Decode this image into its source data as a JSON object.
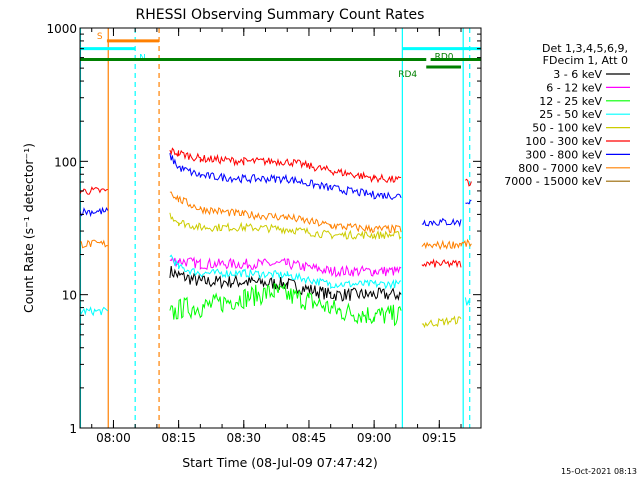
{
  "chart_data": {
    "type": "line",
    "title": "RHESSI Observing Summary Count Rates",
    "xlabel": "Start Time (08-Jul-09 07:47:42)",
    "ylabel": "Count Rate (s⁻¹ detector⁻¹)",
    "y_scale": "log",
    "ylim": [
      1,
      1000
    ],
    "xlim_minutes": [
      -7.7,
      84.6
    ],
    "x_ticks": [
      {
        "label": "08:00",
        "minute": 0
      },
      {
        "label": "08:15",
        "minute": 15
      },
      {
        "label": "08:30",
        "minute": 30
      },
      {
        "label": "08:45",
        "minute": 45
      },
      {
        "label": "09:00",
        "minute": 60
      },
      {
        "label": "09:15",
        "minute": 75
      }
    ],
    "y_ticks": [
      {
        "label": "1",
        "value": 1
      },
      {
        "label": "10",
        "value": 10
      },
      {
        "label": "100",
        "value": 100
      },
      {
        "label": "1000",
        "value": 1000
      }
    ],
    "legend": {
      "header": [
        "Det 1,3,4,5,6,9,",
        "FDecim 1, Att 0"
      ],
      "placement": "right",
      "entries": [
        {
          "label": "3 - 6 keV",
          "color": "#000000"
        },
        {
          "label": "6 - 12 keV",
          "color": "#ff00ff"
        },
        {
          "label": "12 - 25 keV",
          "color": "#00ff00"
        },
        {
          "label": "25 - 50 keV",
          "color": "#00ffff"
        },
        {
          "label": "50 - 100 keV",
          "color": "#cccc00"
        },
        {
          "label": "100 - 300 keV",
          "color": "#ff0000"
        },
        {
          "label": "300 - 800 keV",
          "color": "#0000ff"
        },
        {
          "label": "800 - 7000 keV",
          "color": "#ff8000"
        },
        {
          "label": "7000 - 15000 keV",
          "color": "#996600"
        }
      ]
    },
    "series": [
      {
        "name": "3 - 6 keV",
        "color": "#000000",
        "noise": 0.05,
        "points": [
          [
            -7.7,
            null
          ],
          [
            13,
            15
          ],
          [
            15,
            14
          ],
          [
            20,
            12.5
          ],
          [
            30,
            12.5
          ],
          [
            40,
            12
          ],
          [
            50,
            10
          ],
          [
            58,
            10
          ],
          [
            66.2,
            10
          ],
          [
            67,
            null
          ]
        ]
      },
      {
        "name": "6 - 12 keV",
        "color": "#ff00ff",
        "noise": 0.04,
        "points": [
          [
            -7.7,
            null
          ],
          [
            13,
            18
          ],
          [
            15,
            18
          ],
          [
            20,
            17
          ],
          [
            30,
            17
          ],
          [
            40,
            17
          ],
          [
            50,
            15
          ],
          [
            60,
            15
          ],
          [
            66.2,
            15
          ],
          [
            67,
            null
          ]
        ]
      },
      {
        "name": "12 - 25 keV",
        "color": "#00ff00",
        "noise": 0.08,
        "points": [
          [
            -7.7,
            null
          ],
          [
            13,
            7
          ],
          [
            16,
            8
          ],
          [
            20,
            8
          ],
          [
            30,
            9.5
          ],
          [
            37,
            10.5
          ],
          [
            45,
            9
          ],
          [
            52,
            7.5
          ],
          [
            60,
            7
          ],
          [
            66.2,
            7
          ],
          [
            67,
            null
          ]
        ]
      },
      {
        "name": "25 - 50 keV",
        "color": "#00ffff",
        "noise": 0.03,
        "points": [
          [
            -7.7,
            7.5
          ],
          [
            -1.3,
            7.5
          ],
          [
            -1.1,
            null
          ],
          [
            13,
            20
          ],
          [
            15,
            16
          ],
          [
            20,
            14.5
          ],
          [
            30,
            14.5
          ],
          [
            40,
            14
          ],
          [
            50,
            12
          ],
          [
            60,
            12
          ],
          [
            66.2,
            12
          ],
          [
            67,
            null
          ],
          [
            80.5,
            null
          ],
          [
            81,
            9
          ],
          [
            82,
            8.5
          ],
          [
            82.4,
            null
          ]
        ]
      },
      {
        "name": "50 - 100 keV",
        "color": "#cccc00",
        "noise": 0.03,
        "points": [
          [
            -7.7,
            null
          ],
          [
            13,
            40
          ],
          [
            15,
            35
          ],
          [
            20,
            32
          ],
          [
            30,
            32
          ],
          [
            40,
            31
          ],
          [
            50,
            28
          ],
          [
            60,
            28
          ],
          [
            66.2,
            28
          ],
          [
            67,
            null
          ],
          [
            71,
            6
          ],
          [
            80,
            6.5
          ],
          [
            81,
            null
          ]
        ]
      },
      {
        "name": "100 - 300 keV",
        "color": "#ff0000",
        "noise": 0.03,
        "points": [
          [
            -7.7,
            60
          ],
          [
            -1.3,
            60
          ],
          [
            -1.1,
            null
          ],
          [
            13,
            120
          ],
          [
            15,
            115
          ],
          [
            20,
            105
          ],
          [
            30,
            100
          ],
          [
            40,
            100
          ],
          [
            50,
            85
          ],
          [
            60,
            75
          ],
          [
            66.2,
            72
          ],
          [
            67,
            null
          ],
          [
            71,
            17
          ],
          [
            80,
            17
          ],
          [
            80.5,
            null
          ],
          [
            81,
            70
          ],
          [
            82.4,
            70
          ]
        ]
      },
      {
        "name": "300 - 800 keV",
        "color": "#0000ff",
        "noise": 0.03,
        "points": [
          [
            -7.7,
            42
          ],
          [
            -1.3,
            42
          ],
          [
            -1.1,
            null
          ],
          [
            13,
            110
          ],
          [
            15,
            90
          ],
          [
            20,
            78
          ],
          [
            30,
            74
          ],
          [
            40,
            74
          ],
          [
            50,
            63
          ],
          [
            60,
            56
          ],
          [
            66.2,
            55
          ],
          [
            67,
            null
          ],
          [
            71,
            35
          ],
          [
            80,
            35
          ],
          [
            80.5,
            null
          ],
          [
            81,
            50
          ],
          [
            82.4,
            50
          ]
        ]
      },
      {
        "name": "800 - 7000 keV",
        "color": "#ff8000",
        "noise": 0.03,
        "points": [
          [
            -7.7,
            24
          ],
          [
            -1.3,
            24
          ],
          [
            -1.1,
            null
          ],
          [
            13,
            60
          ],
          [
            15,
            52
          ],
          [
            20,
            44
          ],
          [
            30,
            40
          ],
          [
            40,
            38
          ],
          [
            50,
            33
          ],
          [
            60,
            31
          ],
          [
            66.2,
            31
          ],
          [
            67,
            null
          ],
          [
            71,
            23
          ],
          [
            80,
            24
          ],
          [
            82.4,
            24
          ]
        ]
      },
      {
        "name": "7000 - 15000 keV",
        "color": "#996600",
        "noise": 0,
        "points": [
          [
            -7.7,
            null
          ]
        ]
      }
    ],
    "markers": [
      {
        "label": "S",
        "type": "bar",
        "color": "#ff8000",
        "value": 800,
        "x_start": -1.5,
        "x_end": 10.5
      },
      {
        "label": "N",
        "type": "bar",
        "color": "#00ffff",
        "value": 700,
        "x_start": -7.7,
        "x_end": 5.0
      },
      {
        "label": "",
        "type": "bar",
        "color": "#00ffff",
        "value": 700,
        "x_start": 66.5,
        "x_end": 84.6
      },
      {
        "label": "RD0",
        "type": "bar",
        "color": "#008000",
        "value": 580,
        "x_start": 73,
        "x_end": 84.6
      },
      {
        "label": "",
        "type": "bar",
        "color": "#008000",
        "value": 580,
        "x_start": -7.7,
        "x_end": 72
      },
      {
        "label": "RD4",
        "type": "bar",
        "color": "#008000",
        "value": 510,
        "x_start": 72,
        "x_end": 80
      }
    ],
    "vertical_lines": [
      {
        "minute": -7.6,
        "color": "#00ffff",
        "dashed": false
      },
      {
        "minute": -1.2,
        "color": "#ff8000",
        "dashed": false
      },
      {
        "minute": 5.0,
        "color": "#00ffff",
        "dashed": true
      },
      {
        "minute": 10.5,
        "color": "#ff8000",
        "dashed": true
      },
      {
        "minute": 66.5,
        "color": "#00ffff",
        "dashed": false
      },
      {
        "minute": 80.5,
        "color": "#00ffff",
        "dashed": false
      },
      {
        "minute": 82.0,
        "color": "#00ffff",
        "dashed": true
      }
    ],
    "footer_timestamp": "15-Oct-2021 08:13"
  }
}
